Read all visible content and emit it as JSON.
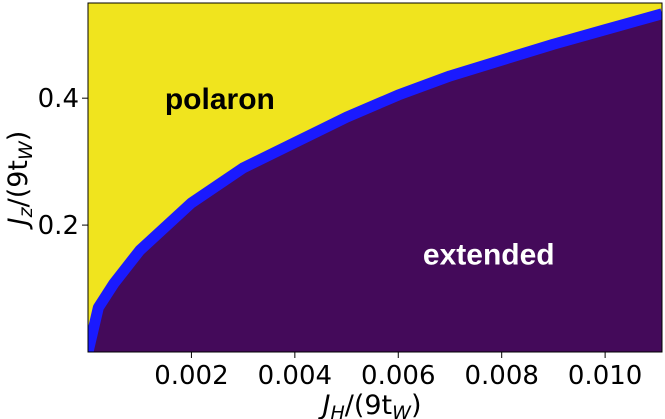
{
  "chart_data": {
    "type": "heatmap",
    "title": "",
    "xlabel": {
      "main": "J",
      "sub": "H",
      "rest": "/(9t",
      "sub2": "W",
      "close": ")"
    },
    "ylabel": {
      "main": "J",
      "sub": "z",
      "rest": "/(9t",
      "sub2": "W",
      "close": ")"
    },
    "xlim": [
      0,
      0.0111
    ],
    "ylim": [
      0,
      0.55
    ],
    "xticks": [
      {
        "value": 0.002,
        "label": "0.002"
      },
      {
        "value": 0.004,
        "label": "0.004"
      },
      {
        "value": 0.006,
        "label": "0.006"
      },
      {
        "value": 0.008,
        "label": "0.008"
      },
      {
        "value": 0.01,
        "label": "0.010"
      }
    ],
    "yticks": [
      {
        "value": 0.2,
        "label": "0.2"
      },
      {
        "value": 0.4,
        "label": "0.4"
      }
    ],
    "grid": false,
    "regions": [
      {
        "name": "polaron",
        "label": "polaron",
        "color": "#f0e41e",
        "label_color": "#000000",
        "label_x": 0.00255,
        "label_y": 0.4
      },
      {
        "name": "extended",
        "label": "extended",
        "color": "#440a5a",
        "label_color": "#ffffff",
        "label_x": 0.00775,
        "label_y": 0.155
      }
    ],
    "boundary": {
      "color": "#1a1aff",
      "x": [
        0.0,
        0.0002,
        0.0005,
        0.001,
        0.002,
        0.003,
        0.004,
        0.005,
        0.006,
        0.007,
        0.008,
        0.009,
        0.01,
        0.0111
      ],
      "y": [
        0.0,
        0.07,
        0.108,
        0.16,
        0.235,
        0.29,
        0.33,
        0.37,
        0.405,
        0.435,
        0.46,
        0.485,
        0.508,
        0.533
      ]
    }
  }
}
